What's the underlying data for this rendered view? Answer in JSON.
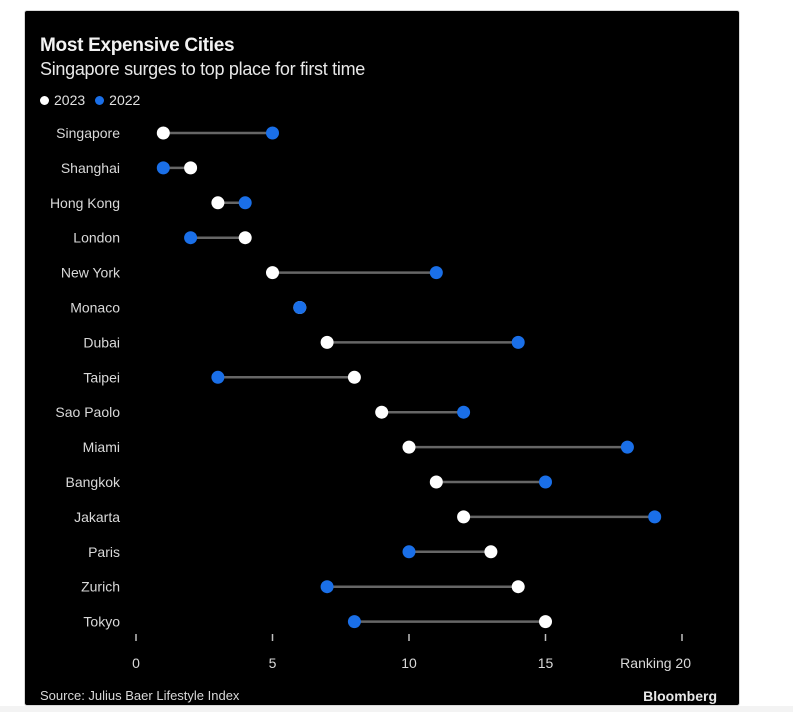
{
  "chart_data": {
    "type": "dumbbell",
    "title": "Most Expensive Cities",
    "subtitle": "Singapore surges to top place for first time",
    "xlabel": "Ranking",
    "xlim": [
      0,
      20
    ],
    "xticks": [
      0,
      5,
      10,
      15,
      20
    ],
    "xtick_labels": [
      "0",
      "5",
      "10",
      "15",
      "Ranking 20"
    ],
    "legend": [
      {
        "name": "2023",
        "color": "#ffffff"
      },
      {
        "name": "2022",
        "color": "#1a6fe8"
      }
    ],
    "legend_position": "top-left",
    "categories": [
      "Singapore",
      "Shanghai",
      "Hong Kong",
      "London",
      "New York",
      "Monaco",
      "Dubai",
      "Taipei",
      "Sao Paolo",
      "Miami",
      "Bangkok",
      "Jakarta",
      "Paris",
      "Zurich",
      "Tokyo"
    ],
    "series": [
      {
        "name": "2023",
        "values": [
          1,
          2,
          3,
          4,
          5,
          6,
          7,
          8,
          9,
          10,
          11,
          12,
          13,
          14,
          15
        ]
      },
      {
        "name": "2022",
        "values": [
          5,
          1,
          4,
          2,
          11,
          6,
          14,
          3,
          12,
          18,
          15,
          19,
          10,
          7,
          8
        ]
      }
    ],
    "source": "Source: Julius Baer Lifestyle Index",
    "brand": "Bloomberg"
  },
  "colors": {
    "background": "#000000",
    "connector": "#666666",
    "dot_2023": "#ffffff",
    "dot_2022": "#1a6fe8"
  }
}
